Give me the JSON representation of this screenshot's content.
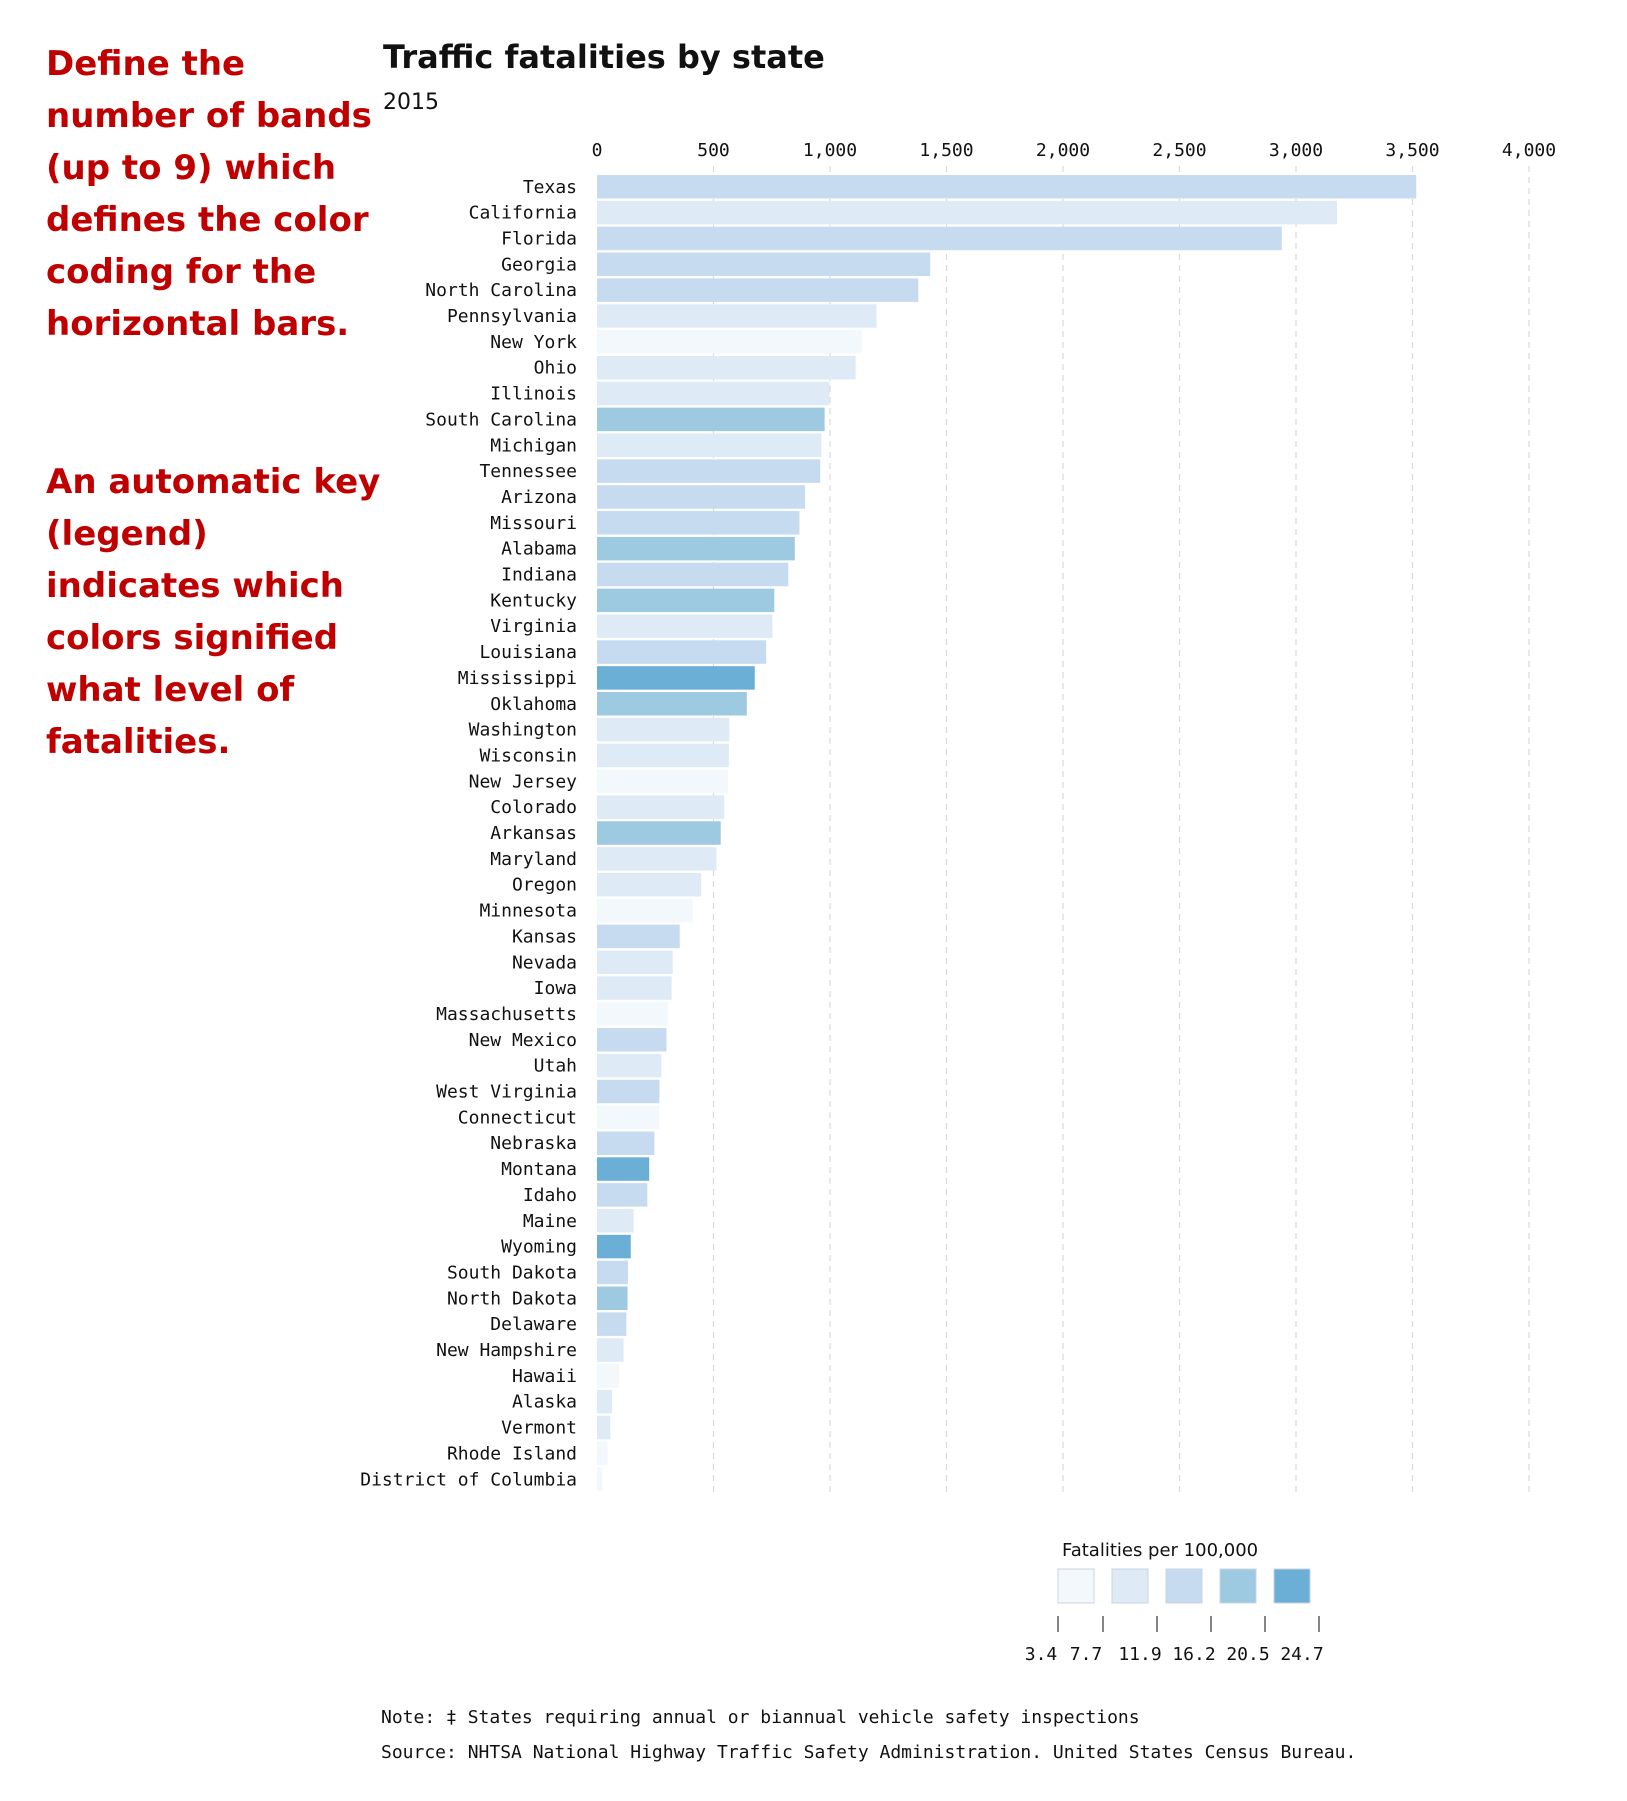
{
  "annotations": {
    "bands": "Define the number of bands (up to 9) which defines the color coding for the horizontal bars.",
    "legend": "An automatic key (legend) indicates which colors signified what level of fatalities."
  },
  "chart_data": {
    "type": "bar",
    "orientation": "horizontal",
    "title": "Traffic fatalities by state",
    "subtitle": "2015",
    "xlim": [
      0,
      4000
    ],
    "xticks": [
      "0",
      "500",
      "1,000",
      "1,500",
      "2,000",
      "2,500",
      "3,000",
      "3,500",
      "4,000"
    ],
    "xtick_values": [
      0,
      500,
      1000,
      1500,
      2000,
      2500,
      3000,
      3500,
      4000
    ],
    "grid": "vertical dashed",
    "categories": [
      "Texas",
      "California",
      "Florida",
      "Georgia",
      "North Carolina",
      "Pennsylvania",
      "New York",
      "Ohio",
      "Illinois",
      "South Carolina",
      "Michigan",
      "Tennessee",
      "Arizona",
      "Missouri",
      "Alabama",
      "Indiana",
      "Kentucky",
      "Virginia",
      "Louisiana",
      "Mississippi",
      "Oklahoma",
      "Washington",
      "Wisconsin",
      "New Jersey",
      "Colorado",
      "Arkansas",
      "Maryland",
      "Oregon",
      "Minnesota",
      "Kansas",
      "Nevada",
      "Iowa",
      "Massachusetts",
      "New Mexico",
      "Utah",
      "West Virginia",
      "Connecticut",
      "Nebraska",
      "Montana",
      "Idaho",
      "Maine",
      "Wyoming",
      "South Dakota",
      "North Dakota",
      "Delaware",
      "New Hampshire",
      "Hawaii",
      "Alaska",
      "Vermont",
      "Rhode Island",
      "District of Columbia"
    ],
    "values": [
      3516,
      3176,
      2939,
      1430,
      1379,
      1200,
      1136,
      1110,
      998,
      977,
      963,
      958,
      893,
      869,
      849,
      821,
      761,
      753,
      726,
      677,
      643,
      568,
      566,
      562,
      546,
      531,
      513,
      447,
      411,
      355,
      325,
      320,
      306,
      298,
      276,
      268,
      266,
      246,
      224,
      216,
      157,
      145,
      133,
      131,
      126,
      114,
      94,
      65,
      57,
      45,
      23
    ],
    "color_band": [
      2,
      1,
      2,
      2,
      2,
      1,
      0,
      1,
      1,
      3,
      1,
      2,
      2,
      2,
      3,
      2,
      3,
      1,
      2,
      4,
      3,
      1,
      1,
      0,
      1,
      3,
      1,
      1,
      0,
      2,
      1,
      1,
      0,
      2,
      1,
      2,
      0,
      2,
      4,
      2,
      1,
      4,
      2,
      3,
      2,
      1,
      0,
      1,
      1,
      0,
      0
    ],
    "legend": {
      "title": "Fatalities per 100,000",
      "placement": "bottom-right",
      "breaks": [
        "3.4",
        "7.7",
        "11.9",
        "16.2",
        "20.5",
        "24.7"
      ],
      "colors": [
        "#f3f8fd",
        "#deebf7",
        "#c6dbef",
        "#9ecae1",
        "#6baed6"
      ]
    }
  },
  "footnotes": {
    "note": "Note: ‡ States requiring annual or biannual vehicle safety inspections",
    "source": "Source: NHTSA National Highway Traffic Safety Administration. United States Census Bureau."
  }
}
